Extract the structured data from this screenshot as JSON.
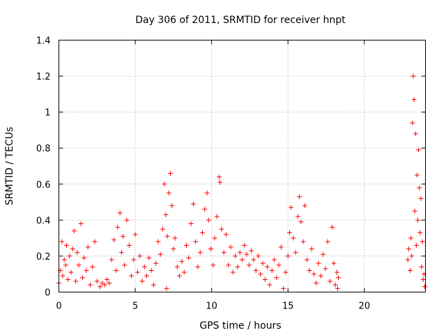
{
  "chart_data": {
    "type": "scatter",
    "title": "Day 306 of 2011, SRMTID for receiver hnpt",
    "xlabel": "GPS time / hours",
    "ylabel": "SRMTID / TECUs",
    "xlim": [
      0,
      24
    ],
    "ylim": [
      0,
      1.4
    ],
    "xticks": [
      0,
      5,
      10,
      15,
      20
    ],
    "xtick_labels": [
      "0",
      "5",
      "10",
      "15",
      "20"
    ],
    "yticks": [
      0,
      0.2,
      0.4,
      0.6,
      0.8,
      1,
      1.2,
      1.4
    ],
    "ytick_labels": [
      "0",
      "0.2",
      "0.4",
      "0.6",
      "0.8",
      "1",
      "1.2",
      "1.4"
    ],
    "grid": true,
    "marker": "plus",
    "color": "#ff0000",
    "series": [
      {
        "points": [
          [
            0.0,
            0.05
          ],
          [
            0.1,
            0.12
          ],
          [
            0.2,
            0.28
          ],
          [
            0.25,
            0.09
          ],
          [
            0.35,
            0.18
          ],
          [
            0.45,
            0.15
          ],
          [
            0.5,
            0.26
          ],
          [
            0.6,
            0.07
          ],
          [
            0.7,
            0.2
          ],
          [
            0.8,
            0.11
          ],
          [
            0.9,
            0.24
          ],
          [
            1.0,
            0.34
          ],
          [
            1.1,
            0.06
          ],
          [
            1.2,
            0.22
          ],
          [
            1.3,
            0.15
          ],
          [
            1.45,
            0.38
          ],
          [
            1.55,
            0.08
          ],
          [
            1.65,
            0.19
          ],
          [
            1.8,
            0.12
          ],
          [
            1.9,
            0.25
          ],
          [
            2.05,
            0.04
          ],
          [
            2.2,
            0.14
          ],
          [
            2.35,
            0.28
          ],
          [
            2.5,
            0.06
          ],
          [
            2.7,
            0.03
          ],
          [
            2.85,
            0.05
          ],
          [
            3.0,
            0.04
          ],
          [
            3.15,
            0.07
          ],
          [
            3.3,
            0.05
          ],
          [
            3.45,
            0.18
          ],
          [
            3.6,
            0.29
          ],
          [
            3.75,
            0.12
          ],
          [
            3.85,
            0.36
          ],
          [
            4.0,
            0.44
          ],
          [
            4.1,
            0.22
          ],
          [
            4.2,
            0.31
          ],
          [
            4.3,
            0.15
          ],
          [
            4.45,
            0.4
          ],
          [
            4.6,
            0.26
          ],
          [
            4.75,
            0.09
          ],
          [
            4.9,
            0.18
          ],
          [
            5.0,
            0.32
          ],
          [
            5.15,
            0.11
          ],
          [
            5.3,
            0.2
          ],
          [
            5.45,
            0.06
          ],
          [
            5.6,
            0.14
          ],
          [
            5.75,
            0.09
          ],
          [
            5.9,
            0.19
          ],
          [
            6.05,
            0.12
          ],
          [
            6.2,
            0.04
          ],
          [
            6.35,
            0.16
          ],
          [
            6.5,
            0.28
          ],
          [
            6.65,
            0.21
          ],
          [
            6.8,
            0.35
          ],
          [
            6.9,
            0.6
          ],
          [
            7.0,
            0.43
          ],
          [
            7.05,
            0.02
          ],
          [
            7.1,
            0.31
          ],
          [
            7.2,
            0.55
          ],
          [
            7.3,
            0.66
          ],
          [
            7.4,
            0.48
          ],
          [
            7.5,
            0.24
          ],
          [
            7.6,
            0.3
          ],
          [
            7.75,
            0.14
          ],
          [
            7.9,
            0.09
          ],
          [
            8.05,
            0.17
          ],
          [
            8.2,
            0.11
          ],
          [
            8.35,
            0.26
          ],
          [
            8.5,
            0.19
          ],
          [
            8.65,
            0.38
          ],
          [
            8.8,
            0.49
          ],
          [
            8.95,
            0.28
          ],
          [
            9.1,
            0.14
          ],
          [
            9.25,
            0.22
          ],
          [
            9.4,
            0.33
          ],
          [
            9.55,
            0.46
          ],
          [
            9.7,
            0.55
          ],
          [
            9.8,
            0.4
          ],
          [
            9.95,
            0.24
          ],
          [
            10.1,
            0.15
          ],
          [
            10.2,
            0.3
          ],
          [
            10.35,
            0.42
          ],
          [
            10.5,
            0.64
          ],
          [
            10.55,
            0.61
          ],
          [
            10.65,
            0.35
          ],
          [
            10.8,
            0.22
          ],
          [
            10.95,
            0.32
          ],
          [
            11.1,
            0.15
          ],
          [
            11.25,
            0.25
          ],
          [
            11.4,
            0.11
          ],
          [
            11.55,
            0.2
          ],
          [
            11.7,
            0.14
          ],
          [
            11.85,
            0.22
          ],
          [
            12.0,
            0.18
          ],
          [
            12.15,
            0.26
          ],
          [
            12.3,
            0.21
          ],
          [
            12.45,
            0.15
          ],
          [
            12.6,
            0.23
          ],
          [
            12.75,
            0.18
          ],
          [
            12.9,
            0.12
          ],
          [
            13.05,
            0.2
          ],
          [
            13.2,
            0.1
          ],
          [
            13.35,
            0.16
          ],
          [
            13.5,
            0.07
          ],
          [
            13.65,
            0.14
          ],
          [
            13.8,
            0.04
          ],
          [
            13.95,
            0.12
          ],
          [
            14.1,
            0.18
          ],
          [
            14.25,
            0.08
          ],
          [
            14.4,
            0.15
          ],
          [
            14.55,
            0.25
          ],
          [
            14.7,
            0.02
          ],
          [
            14.85,
            0.11
          ],
          [
            15.0,
            0.2
          ],
          [
            15.1,
            0.33
          ],
          [
            15.2,
            0.47
          ],
          [
            15.35,
            0.3
          ],
          [
            15.5,
            0.22
          ],
          [
            15.65,
            0.42
          ],
          [
            15.75,
            0.53
          ],
          [
            15.85,
            0.39
          ],
          [
            16.0,
            0.28
          ],
          [
            16.1,
            0.48
          ],
          [
            16.25,
            0.18
          ],
          [
            16.4,
            0.12
          ],
          [
            16.55,
            0.24
          ],
          [
            16.7,
            0.1
          ],
          [
            16.85,
            0.05
          ],
          [
            17.0,
            0.16
          ],
          [
            17.15,
            0.09
          ],
          [
            17.3,
            0.21
          ],
          [
            17.45,
            0.13
          ],
          [
            17.6,
            0.28
          ],
          [
            17.75,
            0.06
          ],
          [
            17.9,
            0.36
          ],
          [
            18.0,
            0.16
          ],
          [
            18.1,
            0.04
          ],
          [
            18.2,
            0.11
          ],
          [
            18.25,
            0.02
          ],
          [
            18.3,
            0.08
          ],
          [
            22.85,
            0.18
          ],
          [
            22.9,
            0.24
          ],
          [
            23.0,
            0.12
          ],
          [
            23.05,
            0.3
          ],
          [
            23.1,
            0.2
          ],
          [
            23.15,
            0.94
          ],
          [
            23.2,
            1.2
          ],
          [
            23.25,
            1.07
          ],
          [
            23.3,
            0.45
          ],
          [
            23.35,
            0.88
          ],
          [
            23.4,
            0.26
          ],
          [
            23.45,
            0.65
          ],
          [
            23.5,
            0.4
          ],
          [
            23.55,
            0.79
          ],
          [
            23.6,
            0.58
          ],
          [
            23.65,
            0.33
          ],
          [
            23.7,
            0.52
          ],
          [
            23.75,
            0.14
          ],
          [
            23.8,
            0.28
          ],
          [
            23.85,
            0.07
          ],
          [
            23.9,
            0.1
          ],
          [
            23.95,
            0.03
          ]
        ]
      }
    ]
  }
}
